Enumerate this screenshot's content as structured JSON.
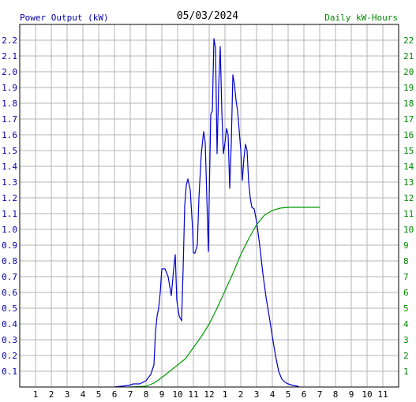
{
  "chart_data": {
    "type": "line",
    "title": "05/03/2024",
    "left_axis_label": "Power Output (kW)",
    "right_axis_label": "Daily kW-Hours",
    "colors": {
      "left_label": "#0000aa",
      "right_label": "#008800",
      "power_line": "#0000cc",
      "energy_line": "#009900",
      "grid": "#b4b4b4",
      "frame": "#000000"
    },
    "x_hours_range": [
      0,
      12
    ],
    "x_tick_labels": [
      "1",
      "2",
      "3",
      "4",
      "5",
      "6",
      "7",
      "8",
      "9",
      "10",
      "11",
      "12",
      "1",
      "2",
      "3",
      "4",
      "5",
      "6",
      "7",
      "8",
      "9",
      "10",
      "11"
    ],
    "ylim_left": [
      0,
      2.3
    ],
    "ylim_right": [
      0,
      23
    ],
    "y_left_ticks": [
      "0.1",
      "0.2",
      "0.3",
      "0.4",
      "0.5",
      "0.6",
      "0.7",
      "0.8",
      "0.9",
      "1.0",
      "1.1",
      "1.2",
      "1.3",
      "1.4",
      "1.5",
      "1.6",
      "1.7",
      "1.8",
      "1.9",
      "2.0",
      "2.1",
      "2.2"
    ],
    "y_right_ticks": [
      "1",
      "2",
      "3",
      "4",
      "5",
      "6",
      "7",
      "8",
      "9",
      "10",
      "11",
      "12",
      "13",
      "14",
      "15",
      "16",
      "17",
      "18",
      "19",
      "20",
      "21",
      "22"
    ],
    "grid": true,
    "series": [
      {
        "key": "power",
        "axis": "left",
        "points": [
          [
            6.0,
            0
          ],
          [
            6.9,
            0.01
          ],
          [
            7.2,
            0.02
          ],
          [
            7.6,
            0.02
          ],
          [
            8.0,
            0.04
          ],
          [
            8.15,
            0.06
          ],
          [
            8.3,
            0.08
          ],
          [
            8.5,
            0.14
          ],
          [
            8.6,
            0.35
          ],
          [
            8.7,
            0.45
          ],
          [
            8.8,
            0.5
          ],
          [
            8.9,
            0.6
          ],
          [
            9.0,
            0.75
          ],
          [
            9.2,
            0.75
          ],
          [
            9.4,
            0.7
          ],
          [
            9.6,
            0.58
          ],
          [
            9.75,
            0.75
          ],
          [
            9.85,
            0.84
          ],
          [
            9.95,
            0.55
          ],
          [
            10.1,
            0.45
          ],
          [
            10.25,
            0.42
          ],
          [
            10.35,
            0.75
          ],
          [
            10.45,
            1.15
          ],
          [
            10.55,
            1.28
          ],
          [
            10.65,
            1.32
          ],
          [
            10.8,
            1.25
          ],
          [
            10.95,
            1.0
          ],
          [
            11.0,
            0.85
          ],
          [
            11.1,
            0.85
          ],
          [
            11.25,
            0.9
          ],
          [
            11.35,
            1.2
          ],
          [
            11.5,
            1.48
          ],
          [
            11.65,
            1.62
          ],
          [
            11.75,
            1.55
          ],
          [
            11.85,
            1.2
          ],
          [
            11.95,
            0.86
          ],
          [
            12.0,
            1.2
          ],
          [
            12.1,
            1.73
          ],
          [
            12.2,
            1.75
          ],
          [
            12.3,
            2.21
          ],
          [
            12.4,
            2.15
          ],
          [
            12.5,
            1.48
          ],
          [
            12.6,
            1.9
          ],
          [
            12.7,
            2.16
          ],
          [
            12.8,
            1.75
          ],
          [
            12.9,
            1.48
          ],
          [
            13.0,
            1.55
          ],
          [
            13.1,
            1.64
          ],
          [
            13.2,
            1.6
          ],
          [
            13.3,
            1.26
          ],
          [
            13.4,
            1.55
          ],
          [
            13.5,
            1.98
          ],
          [
            13.6,
            1.92
          ],
          [
            13.7,
            1.82
          ],
          [
            13.8,
            1.75
          ],
          [
            13.9,
            1.63
          ],
          [
            14.0,
            1.5
          ],
          [
            14.1,
            1.31
          ],
          [
            14.2,
            1.45
          ],
          [
            14.3,
            1.54
          ],
          [
            14.4,
            1.5
          ],
          [
            14.5,
            1.3
          ],
          [
            14.6,
            1.2
          ],
          [
            14.7,
            1.14
          ],
          [
            14.85,
            1.13
          ],
          [
            15.0,
            1.05
          ],
          [
            15.2,
            0.9
          ],
          [
            15.4,
            0.72
          ],
          [
            15.6,
            0.57
          ],
          [
            15.8,
            0.45
          ],
          [
            16.0,
            0.32
          ],
          [
            16.2,
            0.2
          ],
          [
            16.4,
            0.1
          ],
          [
            16.6,
            0.05
          ],
          [
            16.8,
            0.03
          ],
          [
            17.0,
            0.02
          ],
          [
            17.3,
            0.01
          ],
          [
            17.6,
            0.005
          ],
          [
            17.7,
            0
          ]
        ]
      },
      {
        "key": "energy",
        "axis": "right",
        "points": [
          [
            7.0,
            0
          ],
          [
            8.0,
            0.05
          ],
          [
            8.5,
            0.25
          ],
          [
            9.0,
            0.6
          ],
          [
            9.5,
            1.0
          ],
          [
            10.0,
            1.4
          ],
          [
            10.5,
            1.8
          ],
          [
            11.0,
            2.5
          ],
          [
            11.5,
            3.2
          ],
          [
            12.0,
            4.0
          ],
          [
            12.5,
            5.0
          ],
          [
            13.0,
            6.1
          ],
          [
            13.5,
            7.2
          ],
          [
            14.0,
            8.4
          ],
          [
            14.5,
            9.4
          ],
          [
            15.0,
            10.3
          ],
          [
            15.5,
            10.9
          ],
          [
            16.0,
            11.2
          ],
          [
            16.5,
            11.35
          ],
          [
            17.0,
            11.4
          ],
          [
            18.0,
            11.4
          ],
          [
            19.0,
            11.4
          ]
        ]
      }
    ]
  }
}
